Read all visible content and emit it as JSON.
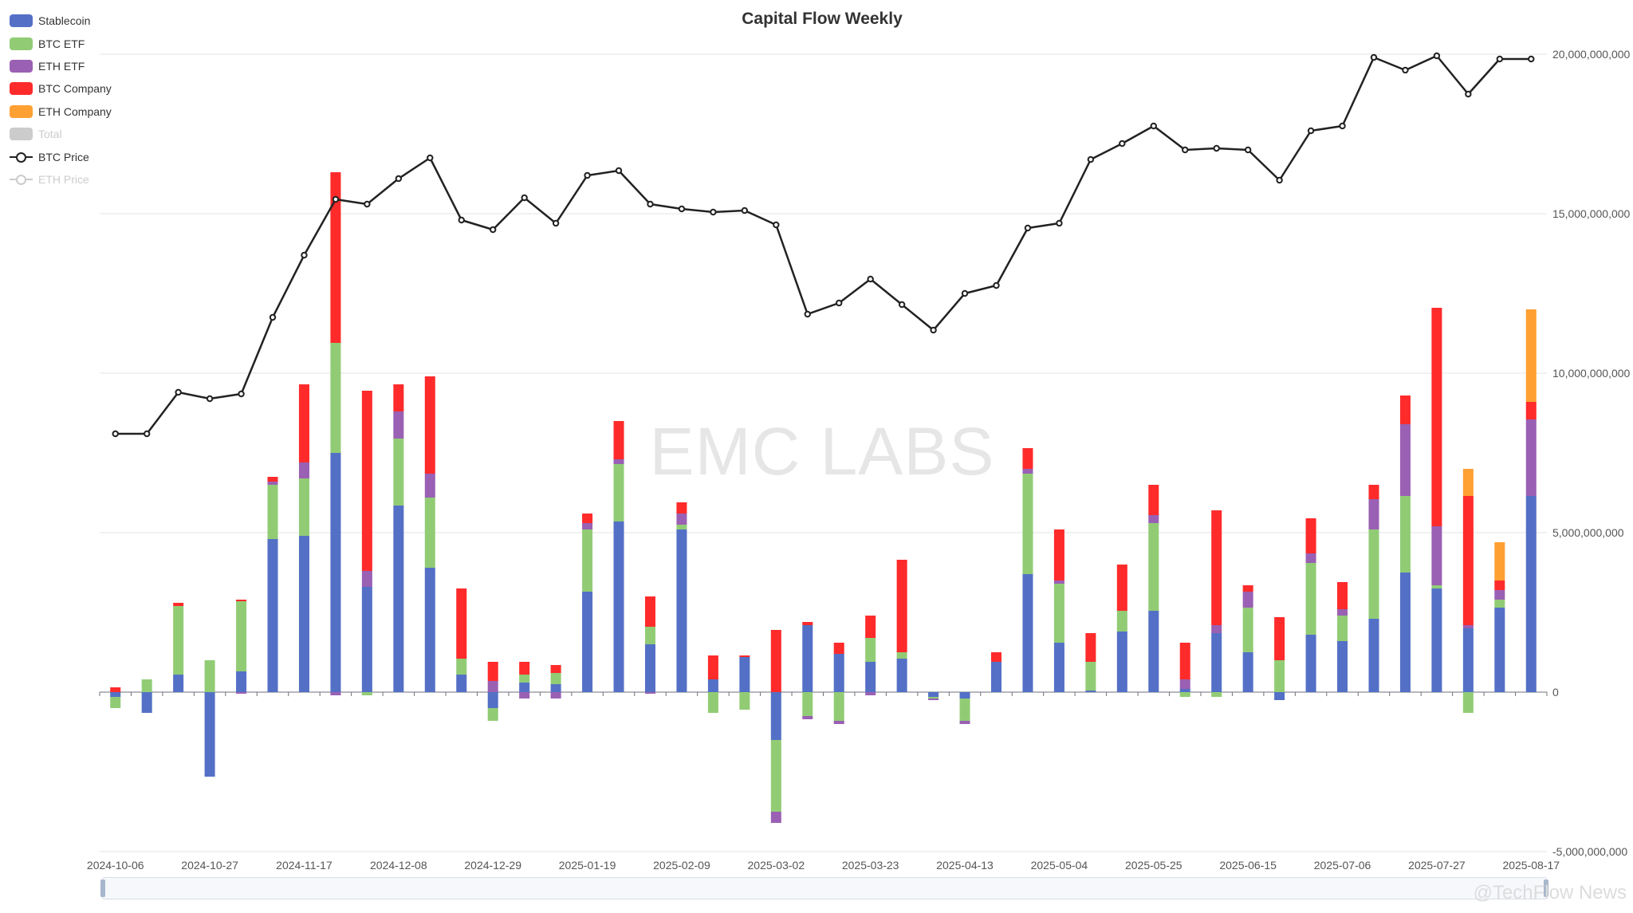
{
  "chart_data": {
    "type": "bar",
    "title": "Capital Flow Weekly",
    "watermark": "EMC LABS",
    "stacked": true,
    "categories": [
      "2024-10-06",
      "2024-10-13",
      "2024-10-20",
      "2024-10-27",
      "2024-11-03",
      "2024-11-10",
      "2024-11-17",
      "2024-11-24",
      "2024-12-01",
      "2024-12-08",
      "2024-12-15",
      "2024-12-22",
      "2024-12-29",
      "2025-01-05",
      "2025-01-12",
      "2025-01-19",
      "2025-01-26",
      "2025-02-02",
      "2025-02-09",
      "2025-02-16",
      "2025-02-23",
      "2025-03-02",
      "2025-03-09",
      "2025-03-16",
      "2025-03-23",
      "2025-03-30",
      "2025-04-06",
      "2025-04-13",
      "2025-04-20",
      "2025-04-27",
      "2025-05-04",
      "2025-05-11",
      "2025-05-18",
      "2025-05-25",
      "2025-06-01",
      "2025-06-08",
      "2025-06-15",
      "2025-06-22",
      "2025-06-29",
      "2025-07-06",
      "2025-07-13",
      "2025-07-20",
      "2025-07-27",
      "2025-08-03",
      "2025-08-10",
      "2025-08-17"
    ],
    "x_tick_labels": [
      "2024-10-06",
      "2024-10-27",
      "2024-11-17",
      "2024-12-08",
      "2024-12-29",
      "2025-01-19",
      "2025-02-09",
      "2025-03-02",
      "2025-03-23",
      "2025-04-13",
      "2025-05-04",
      "2025-05-25",
      "2025-06-15",
      "2025-07-06",
      "2025-07-27",
      "2025-08-17"
    ],
    "y_tick_labels": [
      "20,000,000,000",
      "15,000,000,000",
      "10,000,000,000",
      "5,000,000,000",
      "0",
      "-5,000,000,000"
    ],
    "ylim": [
      -5000000000,
      20000000000
    ],
    "grid": true,
    "legend_position": "top-left",
    "bar_series": [
      {
        "name": "Stablecoin",
        "color": "#5470c6",
        "values": [
          -0.15,
          -0.65,
          0.55,
          -2.65,
          0.65,
          4.8,
          4.9,
          7.5,
          3.3,
          5.85,
          3.9,
          0.55,
          -0.5,
          0.3,
          0.25,
          3.15,
          5.35,
          1.5,
          5.1,
          0.4,
          1.1,
          -1.5,
          2.1,
          1.2,
          0.95,
          1.05,
          -0.15,
          -0.2,
          0.95,
          3.7,
          1.55,
          0.05,
          1.9,
          2.55,
          0.1,
          1.85,
          1.25,
          -0.25,
          1.8,
          1.6,
          2.3,
          3.75,
          3.25,
          2.0,
          2.65,
          6.15
        ]
      },
      {
        "name": "BTC ETF",
        "color": "#91cc75",
        "values": [
          -0.35,
          0.4,
          2.15,
          1.0,
          2.2,
          1.7,
          1.8,
          3.45,
          -0.1,
          2.1,
          2.2,
          0.5,
          -0.4,
          0.25,
          0.35,
          1.95,
          1.8,
          0.55,
          0.15,
          -0.65,
          -0.55,
          -2.25,
          -0.75,
          -0.9,
          0.75,
          0.2,
          -0.05,
          -0.7,
          0,
          3.15,
          1.85,
          0.9,
          0.65,
          2.75,
          -0.15,
          -0.15,
          1.4,
          1.0,
          2.25,
          0.8,
          2.8,
          2.4,
          0.1,
          -0.65,
          0.25,
          0
        ]
      },
      {
        "name": "ETH ETF",
        "color": "#9a60b4",
        "values": [
          0,
          0,
          0,
          0,
          -0.05,
          0.1,
          0.5,
          -0.1,
          0.5,
          0.85,
          0.75,
          0,
          0.35,
          -0.2,
          -0.2,
          0.2,
          0.15,
          -0.05,
          0.35,
          0,
          0,
          -0.35,
          -0.1,
          -0.1,
          -0.1,
          0,
          -0.05,
          -0.1,
          0,
          0.15,
          0.1,
          0,
          0,
          0.25,
          0.3,
          0.25,
          0.5,
          0,
          0.3,
          0.2,
          0.95,
          2.25,
          1.85,
          0.1,
          0.3,
          2.4
        ]
      },
      {
        "name": "BTC Company",
        "color": "#ff2b2b",
        "values": [
          0.15,
          0,
          0.1,
          0,
          0.05,
          0.15,
          2.45,
          5.35,
          5.65,
          0.85,
          3.05,
          2.2,
          0.6,
          0.4,
          0.25,
          0.3,
          1.2,
          0.95,
          0.35,
          0.75,
          0.05,
          1.95,
          0.1,
          0.35,
          0.7,
          2.9,
          0,
          0,
          0.3,
          0.65,
          1.6,
          0.9,
          1.45,
          0.95,
          1.15,
          3.6,
          0.2,
          1.35,
          1.1,
          0.85,
          0.45,
          0.9,
          6.85,
          4.05,
          0.3,
          0.55
        ]
      },
      {
        "name": "ETH Company",
        "color": "#ffa033",
        "values": [
          0,
          0,
          0,
          0,
          0,
          0,
          0,
          0,
          0,
          0,
          0,
          0,
          0,
          0,
          0,
          0,
          0,
          0,
          0,
          0,
          0,
          0,
          0,
          0,
          0,
          0,
          0,
          0,
          0,
          0,
          0,
          0,
          0,
          0,
          0,
          0,
          0,
          0,
          0,
          0,
          0,
          0,
          0,
          0.85,
          1.2,
          2.9
        ]
      }
    ],
    "bar_value_unit": "billions",
    "line_series": [
      {
        "name": "BTC Price",
        "color": "#222222",
        "values": [
          8.1,
          8.1,
          9.4,
          9.2,
          9.35,
          11.75,
          13.7,
          15.45,
          15.3,
          16.1,
          16.75,
          14.8,
          14.5,
          15.5,
          14.7,
          16.2,
          16.35,
          15.3,
          15.15,
          15.05,
          15.1,
          14.65,
          11.85,
          12.2,
          12.95,
          12.15,
          11.35,
          12.5,
          12.75,
          14.55,
          14.7,
          16.7,
          17.2,
          17.75,
          17.0,
          17.05,
          17.0,
          16.05,
          17.6,
          17.75,
          19.9,
          19.5,
          19.95,
          18.75,
          19.85,
          19.85
        ]
      }
    ],
    "line_value_unit": "billions (plotted on value axis)",
    "legend": [
      {
        "name": "Stablecoin",
        "color": "#5470c6",
        "kind": "bar",
        "active": true
      },
      {
        "name": "BTC ETF",
        "color": "#91cc75",
        "kind": "bar",
        "active": true
      },
      {
        "name": "ETH ETF",
        "color": "#9a60b4",
        "kind": "bar",
        "active": true
      },
      {
        "name": "BTC Company",
        "color": "#ff2b2b",
        "kind": "bar",
        "active": true
      },
      {
        "name": "ETH Company",
        "color": "#ffa033",
        "kind": "bar",
        "active": true
      },
      {
        "name": "Total",
        "color": "#cccccc",
        "kind": "bar",
        "active": false
      },
      {
        "name": "BTC Price",
        "color": "#222222",
        "kind": "line",
        "active": true
      },
      {
        "name": "ETH Price",
        "color": "#cccccc",
        "kind": "line",
        "active": false
      }
    ]
  },
  "source_mark": "@TechFlow News"
}
